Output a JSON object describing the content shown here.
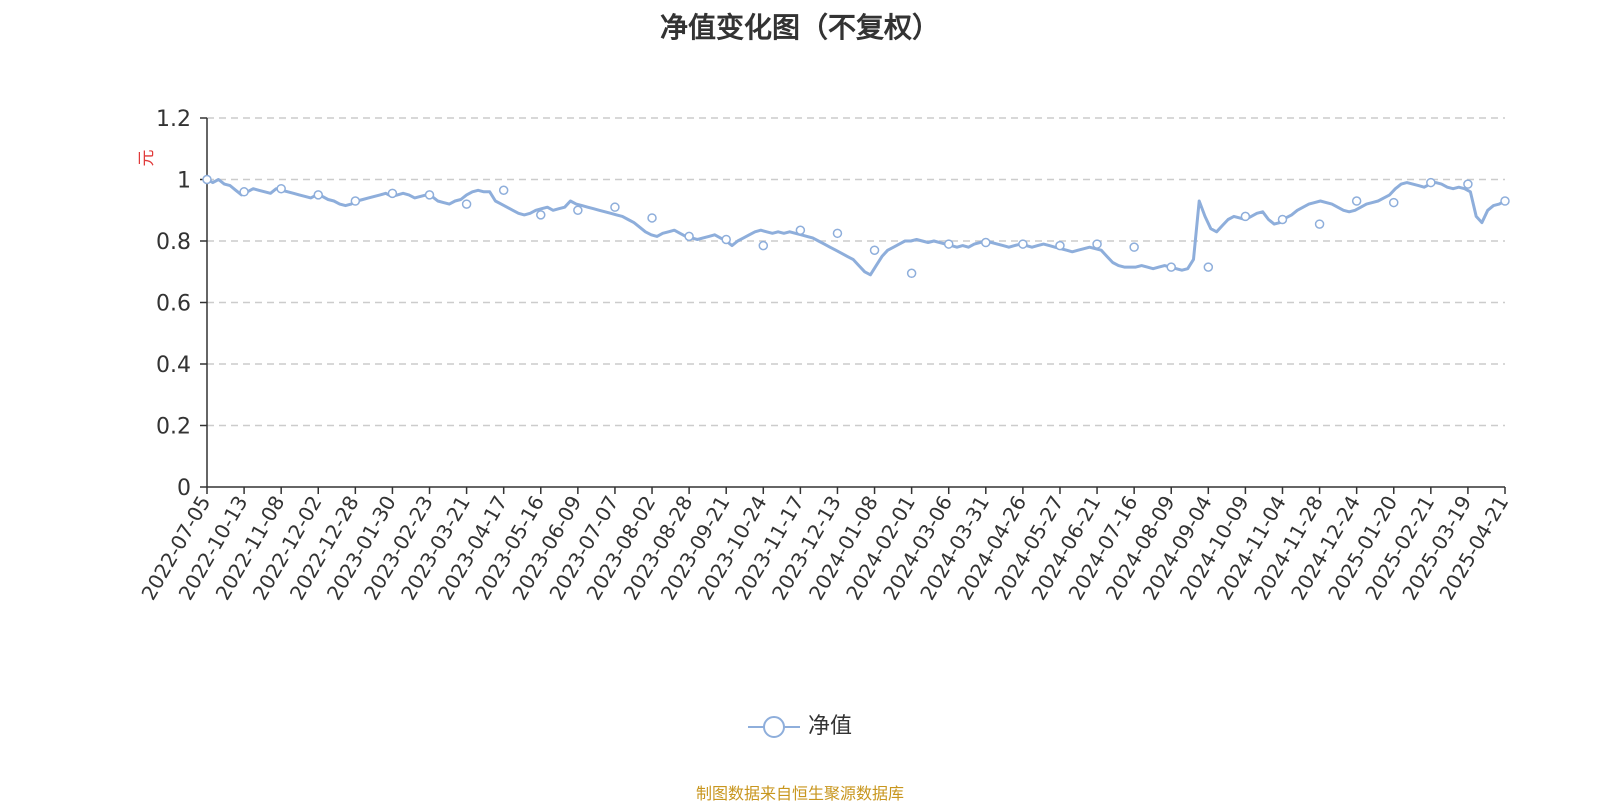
{
  "title": "净值变化图（不复权）",
  "source_note": "制图数据来自恒生聚源数据库",
  "colors": {
    "series": "#8eaedb",
    "unit": "#e03a3a",
    "grid": "#cccccc",
    "axis": "#333333",
    "source": "#c8961e"
  },
  "chart_data": {
    "type": "line",
    "title": "净值变化图（不复权）",
    "ylabel": "元",
    "ylim": [
      0,
      1.2
    ],
    "yticks": [
      "0",
      "0.2",
      "0.4",
      "0.6",
      "0.8",
      "1",
      "1.2"
    ],
    "grid": true,
    "legend_position": "bottom-center",
    "x_tick_labels": [
      "2022-07-05",
      "2022-10-13",
      "2022-11-08",
      "2022-12-02",
      "2022-12-28",
      "2023-01-30",
      "2023-02-23",
      "2023-03-21",
      "2023-04-17",
      "2023-05-16",
      "2023-06-09",
      "2023-07-07",
      "2023-08-02",
      "2023-08-28",
      "2023-09-21",
      "2023-10-24",
      "2023-11-17",
      "2023-12-13",
      "2024-01-08",
      "2024-02-01",
      "2024-03-06",
      "2024-03-31",
      "2024-04-26",
      "2024-05-27",
      "2024-06-21",
      "2024-07-16",
      "2024-08-09",
      "2024-09-04",
      "2024-10-09",
      "2024-11-04",
      "2024-11-28",
      "2024-12-24",
      "2025-01-20",
      "2025-02-21",
      "2025-03-19",
      "2025-04-21"
    ],
    "series": [
      {
        "name": "净值",
        "markers": [
          1.0,
          0.96,
          0.97,
          0.95,
          0.93,
          0.955,
          0.95,
          0.92,
          0.965,
          0.885,
          0.9,
          0.91,
          0.875,
          0.815,
          0.805,
          0.785,
          0.835,
          0.825,
          0.77,
          0.695,
          0.79,
          0.795,
          0.79,
          0.785,
          0.79,
          0.78,
          0.715,
          0.715,
          0.88,
          0.87,
          0.855,
          0.93,
          0.925,
          0.99,
          0.985,
          0.93
        ],
        "values": [
          1.0,
          0.99,
          1.0,
          0.985,
          0.98,
          0.965,
          0.95,
          0.96,
          0.97,
          0.965,
          0.96,
          0.955,
          0.97,
          0.965,
          0.96,
          0.955,
          0.95,
          0.945,
          0.94,
          0.95,
          0.945,
          0.935,
          0.93,
          0.92,
          0.915,
          0.92,
          0.93,
          0.935,
          0.94,
          0.945,
          0.95,
          0.955,
          0.945,
          0.95,
          0.955,
          0.95,
          0.94,
          0.945,
          0.95,
          0.945,
          0.93,
          0.925,
          0.92,
          0.93,
          0.935,
          0.95,
          0.96,
          0.965,
          0.96,
          0.96,
          0.93,
          0.92,
          0.91,
          0.9,
          0.89,
          0.885,
          0.89,
          0.9,
          0.905,
          0.91,
          0.9,
          0.905,
          0.91,
          0.93,
          0.92,
          0.915,
          0.91,
          0.905,
          0.9,
          0.895,
          0.89,
          0.885,
          0.88,
          0.87,
          0.86,
          0.845,
          0.83,
          0.82,
          0.815,
          0.825,
          0.83,
          0.835,
          0.825,
          0.815,
          0.81,
          0.805,
          0.81,
          0.815,
          0.82,
          0.81,
          0.8,
          0.785,
          0.8,
          0.81,
          0.82,
          0.83,
          0.835,
          0.83,
          0.825,
          0.83,
          0.825,
          0.83,
          0.825,
          0.82,
          0.815,
          0.81,
          0.8,
          0.79,
          0.78,
          0.77,
          0.76,
          0.75,
          0.74,
          0.72,
          0.7,
          0.69,
          0.72,
          0.75,
          0.77,
          0.78,
          0.79,
          0.8,
          0.8,
          0.805,
          0.8,
          0.795,
          0.8,
          0.795,
          0.79,
          0.785,
          0.78,
          0.785,
          0.78,
          0.79,
          0.795,
          0.8,
          0.795,
          0.79,
          0.785,
          0.78,
          0.785,
          0.79,
          0.785,
          0.78,
          0.785,
          0.79,
          0.785,
          0.78,
          0.775,
          0.77,
          0.765,
          0.77,
          0.775,
          0.78,
          0.775,
          0.77,
          0.75,
          0.73,
          0.72,
          0.715,
          0.715,
          0.715,
          0.72,
          0.715,
          0.71,
          0.715,
          0.72,
          0.715,
          0.71,
          0.705,
          0.71,
          0.74,
          0.93,
          0.88,
          0.84,
          0.83,
          0.85,
          0.87,
          0.88,
          0.875,
          0.87,
          0.88,
          0.89,
          0.895,
          0.87,
          0.855,
          0.86,
          0.875,
          0.885,
          0.9,
          0.91,
          0.92,
          0.925,
          0.93,
          0.925,
          0.92,
          0.91,
          0.9,
          0.895,
          0.9,
          0.91,
          0.92,
          0.925,
          0.93,
          0.94,
          0.95,
          0.97,
          0.985,
          0.99,
          0.985,
          0.98,
          0.975,
          0.985,
          0.99,
          0.985,
          0.975,
          0.97,
          0.975,
          0.97,
          0.96,
          0.88,
          0.86,
          0.9,
          0.915,
          0.92,
          0.93
        ]
      }
    ]
  }
}
